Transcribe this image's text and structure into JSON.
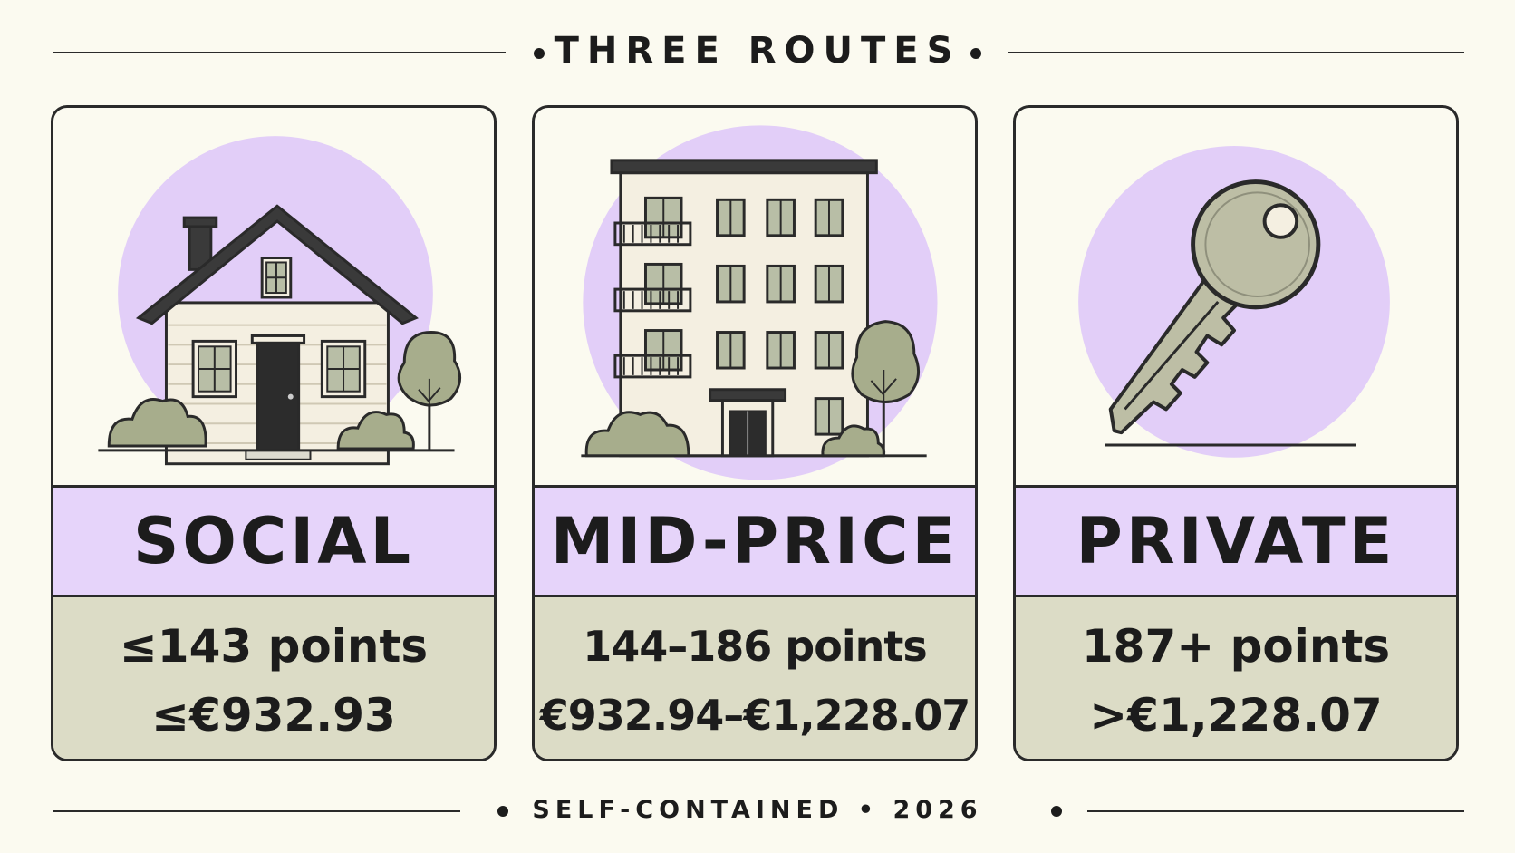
{
  "header": {
    "title": "THREE ROUTES"
  },
  "cards": [
    {
      "name": "SOCIAL",
      "points": "≤143 points",
      "amount": "≤€932.93",
      "icon": "house-icon"
    },
    {
      "name": "MID-PRICE",
      "points": "144–186 points",
      "amount": "€932.94–€1,228.07",
      "icon": "apartment-building-icon"
    },
    {
      "name": "PRIVATE",
      "points": "187+ points",
      "amount": ">€1,228.07",
      "icon": "key-icon"
    }
  ],
  "footer": {
    "text": "SELF-CONTAINED • 2026"
  },
  "colors": {
    "background": "#fbfaf0",
    "accent_lavender": "#e6d4fa",
    "circle_lavender": "#e2cef8",
    "info_panel": "#dcdcc6",
    "foliage": "#a7ad8c",
    "outline": "#2a2a2a"
  }
}
